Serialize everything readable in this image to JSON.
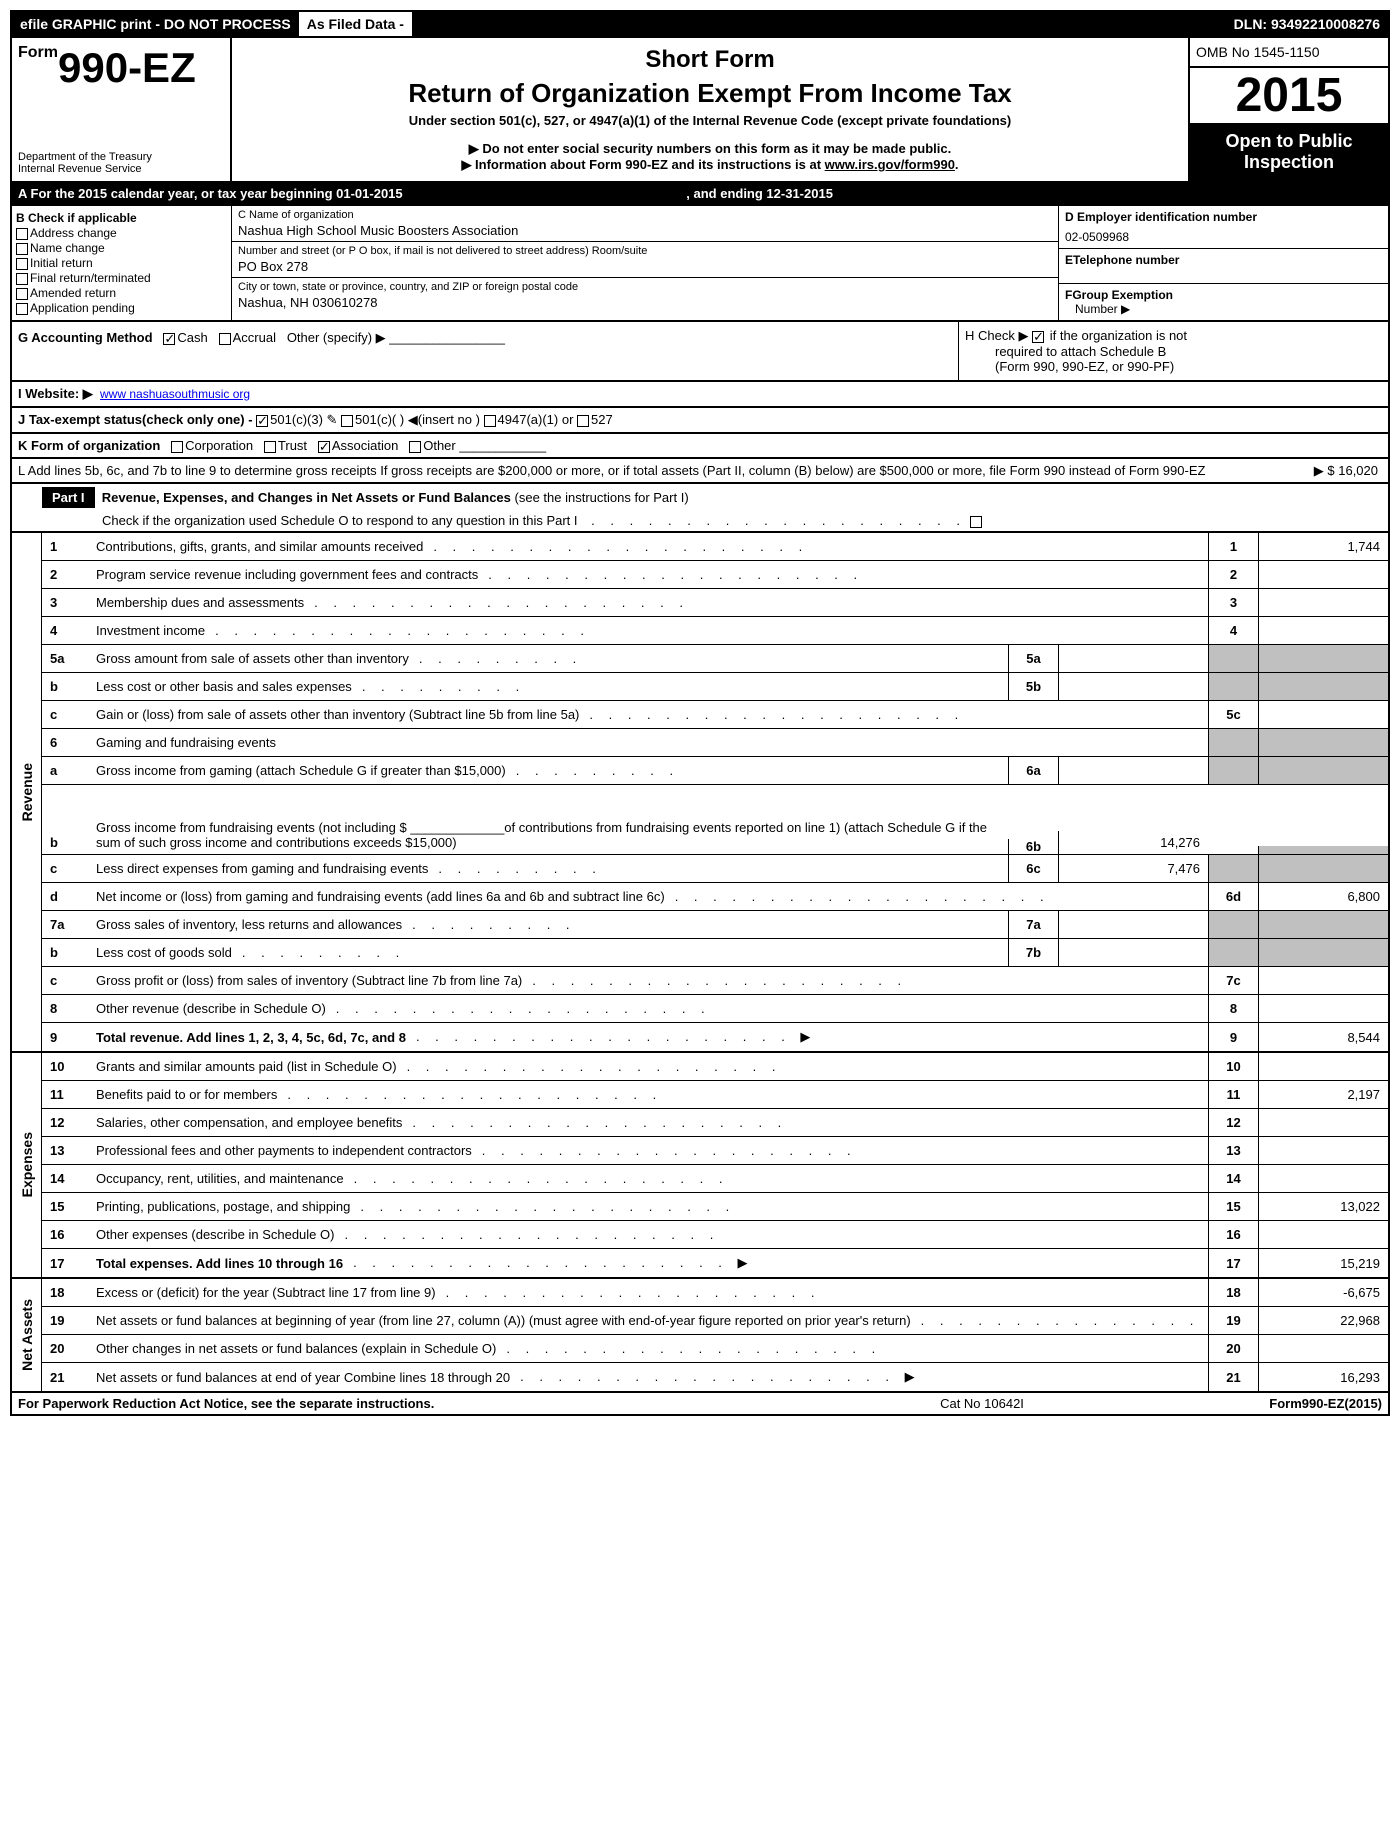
{
  "topbar": {
    "left": "efile GRAPHIC print - DO NOT PROCESS",
    "mid": "As Filed Data -",
    "dln": "DLN: 93492210008276"
  },
  "header": {
    "form_prefix": "Form",
    "form_number": "990-EZ",
    "dept1": "Department of the Treasury",
    "dept2": "Internal Revenue Service",
    "short_form": "Short Form",
    "main_title": "Return of Organization Exempt From Income Tax",
    "subtitle": "Under section 501(c), 527, or 4947(a)(1) of the Internal Revenue Code (except private foundations)",
    "notice1": "▶ Do not enter social security numbers on this form as it may be made public.",
    "notice2_pre": "▶ Information about Form 990-EZ and its instructions is at ",
    "notice2_link": "www.irs.gov/form990",
    "notice2_post": ".",
    "omb": "OMB No 1545-1150",
    "year": "2015",
    "inspection1": "Open to Public",
    "inspection2": "Inspection"
  },
  "rowA": {
    "text": "A  For the 2015 calendar year, or tax year beginning 01-01-2015",
    "ending": ", and ending 12-31-2015"
  },
  "colB": {
    "title": "B  Check if applicable",
    "items": [
      "Address change",
      "Name change",
      "Initial return",
      "Final return/terminated",
      "Amended return",
      "Application pending"
    ]
  },
  "colC": {
    "name_label": "C Name of organization",
    "name": "Nashua High School Music Boosters Association",
    "street_label": "Number and street (or P O box, if mail is not delivered to street address) Room/suite",
    "street": "PO Box 278",
    "city_label": "City or town, state or province, country, and ZIP or foreign postal code",
    "city": "Nashua, NH  030610278"
  },
  "colD": {
    "ein_label": "D Employer identification number",
    "ein": "02-0509968",
    "phone_label": "ETelephone number",
    "group_label": "FGroup Exemption",
    "group_label2": "Number    ▶"
  },
  "rowG": {
    "label": "G Accounting Method",
    "cash": "Cash",
    "accrual": "Accrual",
    "other": "Other (specify) ▶"
  },
  "rowH": {
    "text1": "H  Check ▶",
    "text2": "if the organization is not",
    "text3": "required to attach Schedule B",
    "text4": "(Form 990, 990-EZ, or 990-PF)"
  },
  "rowI": {
    "label": "I Website: ▶",
    "value": "www nashuasouthmusic org"
  },
  "rowJ": {
    "text": "J Tax-exempt status(check only one) -",
    "opt1": "501(c)(3)",
    "opt2": "501(c)(  )",
    "opt2b": "(insert no )",
    "opt3": "4947(a)(1) or",
    "opt4": "527"
  },
  "rowK": {
    "text": "K Form of organization",
    "opts": [
      "Corporation",
      "Trust",
      "Association",
      "Other"
    ]
  },
  "rowL": {
    "text": "L Add lines 5b, 6c, and 7b to line 9 to determine gross receipts If gross receipts are $200,000 or more, or if total assets (Part II, column (B) below) are $500,000 or more, file Form 990 instead of Form 990-EZ",
    "amount": "▶ $ 16,020"
  },
  "part1": {
    "label": "Part I",
    "title": "Revenue, Expenses, and Changes in Net Assets or Fund Balances",
    "title_suffix": "(see the instructions for Part I)",
    "check": "Check if the organization used Schedule O to respond to any question in this Part I"
  },
  "sections": {
    "revenue_label": "Revenue",
    "expenses_label": "Expenses",
    "netassets_label": "Net Assets"
  },
  "lines": {
    "l1": {
      "num": "1",
      "desc": "Contributions, gifts, grants, and similar amounts received",
      "box": "1",
      "val": "1,744"
    },
    "l2": {
      "num": "2",
      "desc": "Program service revenue including government fees and contracts",
      "box": "2",
      "val": ""
    },
    "l3": {
      "num": "3",
      "desc": "Membership dues and assessments",
      "box": "3",
      "val": ""
    },
    "l4": {
      "num": "4",
      "desc": "Investment income",
      "box": "4",
      "val": ""
    },
    "l5a": {
      "num": "5a",
      "desc": "Gross amount from sale of assets other than inventory",
      "sub": "5a",
      "subval": ""
    },
    "l5b": {
      "num": "b",
      "desc": "Less  cost or other basis and sales expenses",
      "sub": "5b",
      "subval": ""
    },
    "l5c": {
      "num": "c",
      "desc": "Gain or (loss) from sale of assets other than inventory (Subtract line 5b from line 5a)",
      "box": "5c",
      "val": ""
    },
    "l6": {
      "num": "6",
      "desc": "Gaming and fundraising events"
    },
    "l6a": {
      "num": "a",
      "desc": "Gross income from gaming (attach Schedule G if greater than $15,000)",
      "sub": "6a",
      "subval": ""
    },
    "l6b": {
      "num": "b",
      "desc": "Gross income from fundraising events (not including $ _____________of contributions from fundraising events reported on line 1) (attach Schedule G if the sum of such gross income and contributions exceeds $15,000)",
      "sub": "6b",
      "subval": "14,276"
    },
    "l6c": {
      "num": "c",
      "desc": "Less  direct expenses from gaming and fundraising events",
      "sub": "6c",
      "subval": "7,476"
    },
    "l6d": {
      "num": "d",
      "desc": "Net income or (loss) from gaming and fundraising events (add lines 6a and 6b and subtract line 6c)",
      "box": "6d",
      "val": "6,800"
    },
    "l7a": {
      "num": "7a",
      "desc": "Gross sales of inventory, less returns and allowances",
      "sub": "7a",
      "subval": ""
    },
    "l7b": {
      "num": "b",
      "desc": "Less  cost of goods sold",
      "sub": "7b",
      "subval": ""
    },
    "l7c": {
      "num": "c",
      "desc": "Gross profit or (loss) from sales of inventory (Subtract line 7b from line 7a)",
      "box": "7c",
      "val": ""
    },
    "l8": {
      "num": "8",
      "desc": "Other revenue (describe in Schedule O)",
      "box": "8",
      "val": ""
    },
    "l9": {
      "num": "9",
      "desc": "Total revenue. Add lines 1, 2, 3, 4, 5c, 6d, 7c, and 8",
      "box": "9",
      "val": "8,544",
      "bold": true,
      "arrow": true
    },
    "l10": {
      "num": "10",
      "desc": "Grants and similar amounts paid (list in Schedule O)",
      "box": "10",
      "val": ""
    },
    "l11": {
      "num": "11",
      "desc": "Benefits paid to or for members",
      "box": "11",
      "val": "2,197"
    },
    "l12": {
      "num": "12",
      "desc": "Salaries, other compensation, and employee benefits",
      "box": "12",
      "val": ""
    },
    "l13": {
      "num": "13",
      "desc": "Professional fees and other payments to independent contractors",
      "box": "13",
      "val": ""
    },
    "l14": {
      "num": "14",
      "desc": "Occupancy, rent, utilities, and maintenance",
      "box": "14",
      "val": ""
    },
    "l15": {
      "num": "15",
      "desc": "Printing, publications, postage, and shipping",
      "box": "15",
      "val": "13,022"
    },
    "l16": {
      "num": "16",
      "desc": "Other expenses (describe in Schedule O)",
      "box": "16",
      "val": ""
    },
    "l17": {
      "num": "17",
      "desc": "Total expenses. Add lines 10 through 16",
      "box": "17",
      "val": "15,219",
      "bold": true,
      "arrow": true
    },
    "l18": {
      "num": "18",
      "desc": "Excess or (deficit) for the year (Subtract line 17 from line 9)",
      "box": "18",
      "val": "-6,675"
    },
    "l19": {
      "num": "19",
      "desc": "Net assets or fund balances at beginning of year (from line 27, column (A)) (must agree with end-of-year figure reported on prior year's return)",
      "box": "19",
      "val": "22,968"
    },
    "l20": {
      "num": "20",
      "desc": "Other changes in net assets or fund balances (explain in Schedule O)",
      "box": "20",
      "val": ""
    },
    "l21": {
      "num": "21",
      "desc": "Net assets or fund balances at end of year Combine lines 18 through 20",
      "box": "21",
      "val": "16,293",
      "arrow": true
    }
  },
  "footer": {
    "left": "For Paperwork Reduction Act Notice, see the separate instructions.",
    "mid": "Cat No 10642I",
    "right_pre": "Form",
    "right_form": "990-EZ",
    "right_year": "(2015)"
  }
}
